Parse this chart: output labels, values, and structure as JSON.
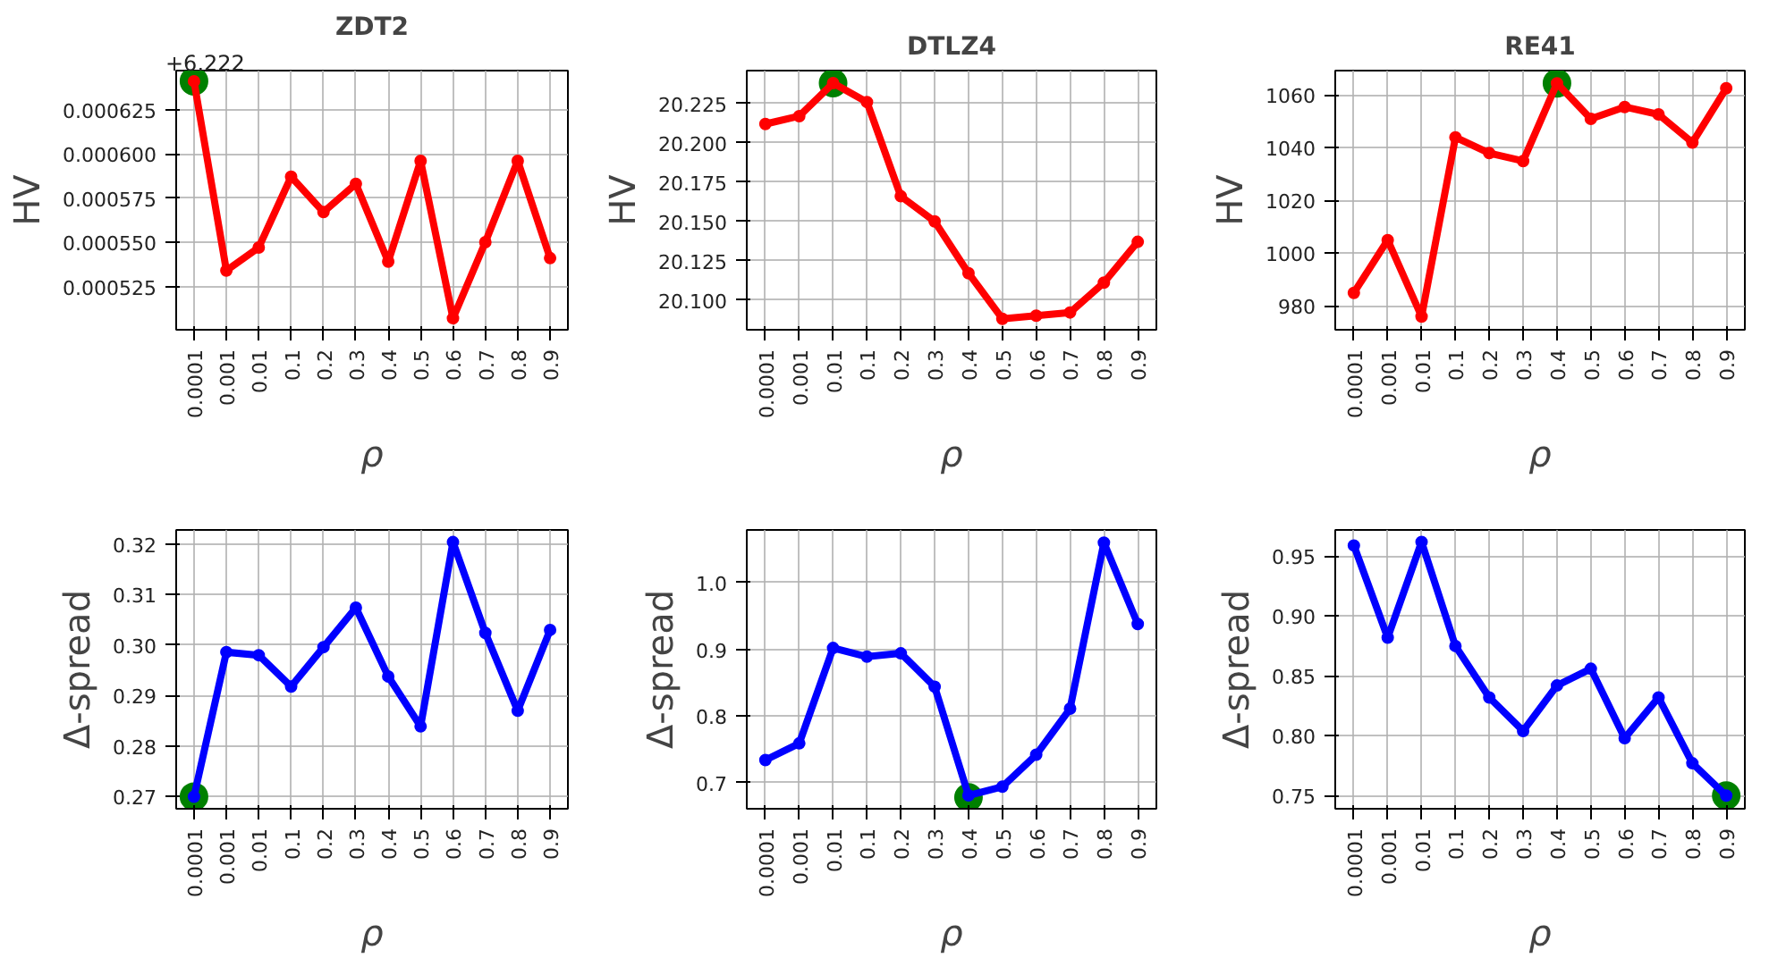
{
  "chart_data": [
    {
      "type": "line",
      "title": "ZDT2",
      "xlabel": "ρ",
      "ylabel": "HV",
      "categories": [
        "0.0001",
        "0.001",
        "0.01",
        "0.1",
        "0.2",
        "0.3",
        "0.4",
        "0.5",
        "0.6",
        "0.7",
        "0.8",
        "0.9"
      ],
      "series": [
        {
          "color": "#ff0000",
          "values": [
            0.000641,
            0.000534,
            0.000547,
            0.000587,
            0.000567,
            0.000583,
            0.000539,
            0.000596,
            0.000507,
            0.00055,
            0.000596,
            0.000541
          ]
        },
        {
          "type": "scatter",
          "color": "#008000",
          "x": [
            "0.0001"
          ],
          "values": [
            0.000641
          ]
        }
      ],
      "ylim": [
        0.0005005,
        0.000647
      ],
      "yticks": [
        0.000525,
        {
          "value": 0.00055,
          "label": "0.000550"
        },
        0.000575,
        {
          "value": 0.0006,
          "label": "0.000600"
        },
        0.000625
      ],
      "annotations": [
        "+6.222"
      ],
      "grid": true,
      "marker": "circle"
    },
    {
      "type": "line",
      "title": "DTLZ4",
      "xlabel": "ρ",
      "ylabel": "HV",
      "categories": [
        "0.0001",
        "0.001",
        "0.01",
        "0.1",
        "0.2",
        "0.3",
        "0.4",
        "0.5",
        "0.6",
        "0.7",
        "0.8",
        "0.9"
      ],
      "series": [
        {
          "color": "#ff0000",
          "values": [
            20.212,
            20.217,
            20.238,
            20.226,
            20.166,
            20.15,
            20.117,
            20.088,
            20.09,
            20.092,
            20.111,
            20.137
          ]
        },
        {
          "type": "scatter",
          "color": "#008000",
          "x": [
            "0.01"
          ],
          "values": [
            20.238
          ]
        }
      ],
      "ylim": [
        20.081,
        20.246
      ],
      "yticks": [
        {
          "value": 20.1,
          "label": "20.100"
        },
        20.125,
        {
          "value": 20.15,
          "label": "20.150"
        },
        20.175,
        {
          "value": 20.2,
          "label": "20.200"
        },
        20.225
      ],
      "grid": true,
      "marker": "circle"
    },
    {
      "type": "line",
      "title": "RE41",
      "xlabel": "ρ",
      "ylabel": "HV",
      "categories": [
        "0.0001",
        "0.001",
        "0.01",
        "0.1",
        "0.2",
        "0.3",
        "0.4",
        "0.5",
        "0.6",
        "0.7",
        "0.8",
        "0.9"
      ],
      "series": [
        {
          "color": "#ff0000",
          "values": [
            985,
            1005,
            976,
            1044,
            1038,
            1035,
            1064.5,
            1051,
            1055.5,
            1052.7,
            1042,
            1062.6
          ]
        },
        {
          "type": "scatter",
          "color": "#008000",
          "x": [
            "0.4"
          ],
          "values": [
            1064.5
          ]
        }
      ],
      "ylim": [
        971,
        1069.3
      ],
      "yticks": [
        980,
        1000,
        1020,
        1040,
        1060
      ],
      "grid": true,
      "marker": "circle"
    },
    {
      "type": "line",
      "xlabel": "ρ",
      "ylabel": "Δ-spread",
      "categories": [
        "0.0001",
        "0.001",
        "0.01",
        "0.1",
        "0.2",
        "0.3",
        "0.4",
        "0.5",
        "0.6",
        "0.7",
        "0.8",
        "0.9"
      ],
      "series": [
        {
          "color": "#0000ff",
          "values": [
            0.27,
            0.2986,
            0.298,
            0.2918,
            0.2996,
            0.3074,
            0.2938,
            0.2839,
            0.3204,
            0.3024,
            0.287,
            0.303
          ]
        },
        {
          "type": "scatter",
          "color": "#008000",
          "x": [
            "0.0001"
          ],
          "values": [
            0.27
          ]
        }
      ],
      "ylim": [
        0.2676,
        0.3228
      ],
      "yticks": [
        {
          "value": 0.27,
          "label": "0.27"
        },
        {
          "value": 0.28,
          "label": "0.28"
        },
        {
          "value": 0.29,
          "label": "0.29"
        },
        {
          "value": 0.3,
          "label": "0.30"
        },
        {
          "value": 0.31,
          "label": "0.31"
        },
        {
          "value": 0.32,
          "label": "0.32"
        }
      ],
      "grid": true,
      "marker": "circle"
    },
    {
      "type": "line",
      "xlabel": "ρ",
      "ylabel": "Δ-spread",
      "categories": [
        "0.0001",
        "0.001",
        "0.01",
        "0.1",
        "0.2",
        "0.3",
        "0.4",
        "0.5",
        "0.6",
        "0.7",
        "0.8",
        "0.9"
      ],
      "series": [
        {
          "color": "#0000ff",
          "values": [
            0.734,
            0.759,
            0.902,
            0.889,
            0.894,
            0.844,
            0.681,
            0.694,
            0.742,
            0.811,
            1.06,
            0.938
          ]
        },
        {
          "type": "scatter",
          "color": "#008000",
          "x": [
            "0.4"
          ],
          "values": [
            0.678
          ]
        }
      ],
      "ylim": [
        0.661,
        1.079
      ],
      "yticks": [
        0.7,
        0.8,
        0.9,
        {
          "value": 1.0,
          "label": "1.0"
        }
      ],
      "grid": true,
      "marker": "circle"
    },
    {
      "type": "line",
      "xlabel": "ρ",
      "ylabel": "Δ-spread",
      "categories": [
        "0.0001",
        "0.001",
        "0.01",
        "0.1",
        "0.2",
        "0.3",
        "0.4",
        "0.5",
        "0.6",
        "0.7",
        "0.8",
        "0.9"
      ],
      "series": [
        {
          "color": "#0000ff",
          "values": [
            0.959,
            0.882,
            0.962,
            0.875,
            0.832,
            0.804,
            0.842,
            0.856,
            0.798,
            0.832,
            0.777,
            0.75
          ]
        },
        {
          "type": "scatter",
          "color": "#008000",
          "x": [
            "0.9"
          ],
          "values": [
            0.75
          ]
        }
      ],
      "ylim": [
        0.739,
        0.972
      ],
      "yticks": [
        {
          "value": 0.75,
          "label": "0.75"
        },
        {
          "value": 0.8,
          "label": "0.80"
        },
        {
          "value": 0.85,
          "label": "0.85"
        },
        {
          "value": 0.9,
          "label": "0.90"
        },
        {
          "value": 0.95,
          "label": "0.95"
        }
      ],
      "grid": true,
      "marker": "circle"
    }
  ]
}
